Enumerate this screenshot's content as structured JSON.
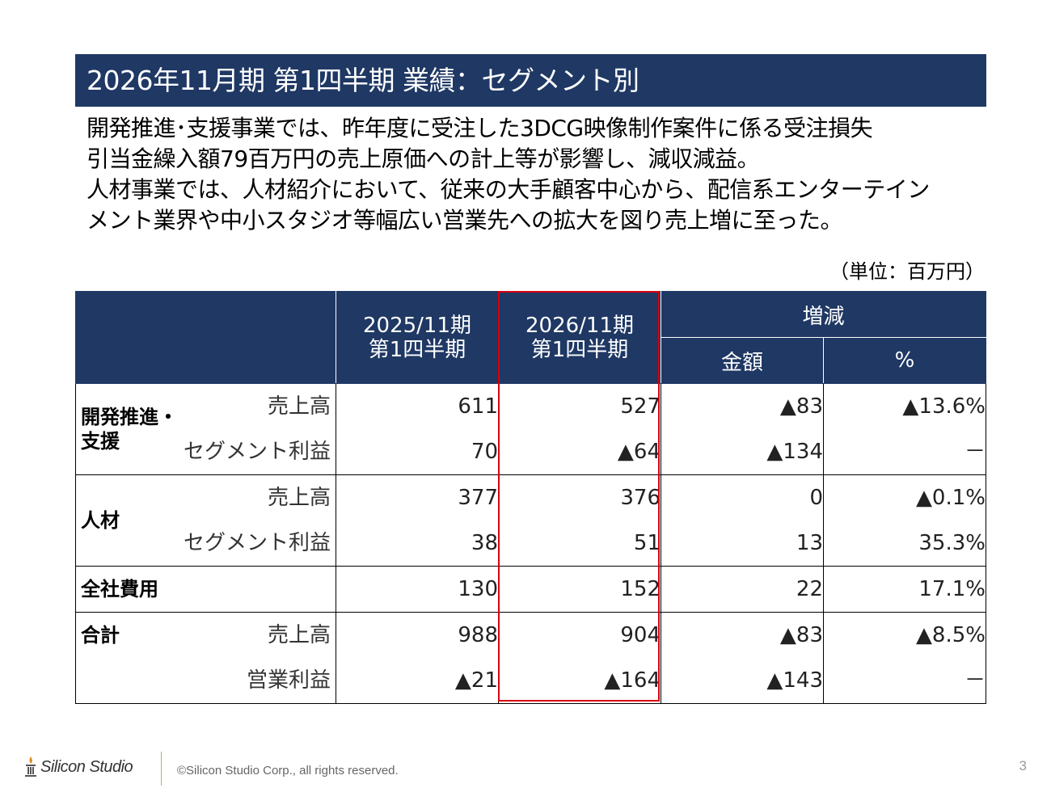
{
  "title": "2026年11月期 第1四半期 業績：セグメント別",
  "description": [
    "開発推進･支援事業では、昨年度に受注した3DCG映像制作案件に係る受注損失",
    "引当金繰入額79百万円の売上原価への計上等が影響し、減収減益。",
    "人材事業では、人材紹介において、従来の大手顧客中心から、配信系エンターテイン",
    "メント業界や中小スタジオ等幅広い営業先への拡大を図り売上増に至った。"
  ],
  "unit_note": "（単位：百万円）",
  "table": {
    "headers": {
      "prev_period": [
        "2025/11期",
        "第1四半期"
      ],
      "curr_period": [
        "2026/11期",
        "第1四半期"
      ],
      "change": "増減",
      "amount": "金額",
      "percent": "%"
    },
    "segments": [
      {
        "name_lines": [
          "開発推進・",
          "支援"
        ],
        "items": [
          "売上高",
          "セグメント利益"
        ],
        "prev": [
          "611",
          "70"
        ],
        "curr": [
          "527",
          "▲64"
        ],
        "amount": [
          "▲83",
          "▲134"
        ],
        "percent": [
          "▲13.6%",
          "－"
        ]
      },
      {
        "name_lines": [
          "人材"
        ],
        "items": [
          "売上高",
          "セグメント利益"
        ],
        "prev": [
          "377",
          "38"
        ],
        "curr": [
          "376",
          "51"
        ],
        "amount": [
          "0",
          "13"
        ],
        "percent": [
          "▲0.1%",
          "35.3%"
        ]
      },
      {
        "name_lines": [
          "全社費用"
        ],
        "items": [],
        "prev": [
          "130"
        ],
        "curr": [
          "152"
        ],
        "amount": [
          "22"
        ],
        "percent": [
          "17.1%"
        ]
      },
      {
        "name_lines": [
          "合計"
        ],
        "items": [
          "売上高",
          "営業利益"
        ],
        "prev": [
          "988",
          "▲21"
        ],
        "curr": [
          "904",
          "▲164"
        ],
        "amount": [
          "▲83",
          "▲143"
        ],
        "percent": [
          "▲8.5%",
          "－"
        ]
      }
    ]
  },
  "footer": {
    "logo_text": "Silicon Studio",
    "copyright": "©Silicon Studio Corp., all rights reserved.",
    "page_number": "3"
  },
  "colors": {
    "header_navy": "#1f3864",
    "highlight_red": "#d7000f"
  }
}
